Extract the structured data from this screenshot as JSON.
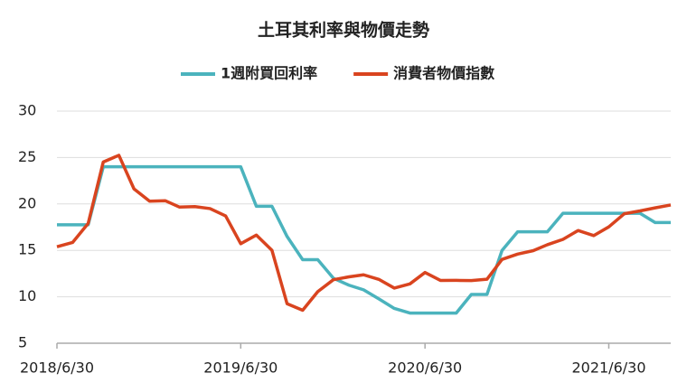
{
  "chart_data": {
    "type": "line",
    "title": "土耳其利率與物價走勢",
    "x": [
      "2018/6/30",
      "2018/7/31",
      "2018/8/31",
      "2018/9/30",
      "2018/10/31",
      "2018/11/30",
      "2018/12/31",
      "2019/1/31",
      "2019/2/28",
      "2019/3/31",
      "2019/4/30",
      "2019/5/31",
      "2019/6/30",
      "2019/7/31",
      "2019/8/31",
      "2019/9/30",
      "2019/10/31",
      "2019/11/30",
      "2019/12/31",
      "2020/1/31",
      "2020/2/29",
      "2020/3/31",
      "2020/4/30",
      "2020/5/31",
      "2020/6/30",
      "2020/7/31",
      "2020/8/31",
      "2020/9/30",
      "2020/10/31",
      "2020/11/30",
      "2020/12/31",
      "2021/1/31",
      "2021/2/28",
      "2021/3/31",
      "2021/4/30",
      "2021/5/31",
      "2021/6/30",
      "2021/7/31",
      "2021/8/31",
      "2021/9/30",
      "2021/10/31"
    ],
    "series": [
      {
        "name": "1週附買回利率",
        "color": "#4bb3bd",
        "values": [
          17.75,
          17.75,
          17.75,
          24,
          24,
          24,
          24,
          24,
          24,
          24,
          24,
          24,
          24,
          19.75,
          19.75,
          16.5,
          14,
          14,
          12,
          11.25,
          10.75,
          9.75,
          8.75,
          8.25,
          8.25,
          8.25,
          8.25,
          10.25,
          10.25,
          15,
          17,
          17,
          17,
          19,
          19,
          19,
          19,
          19,
          19,
          18,
          18
        ]
      },
      {
        "name": "消費者物價指數",
        "color": "#d9441f",
        "values": [
          15.39,
          15.85,
          17.9,
          24.52,
          25.24,
          21.62,
          20.3,
          20.35,
          19.67,
          19.71,
          19.5,
          18.71,
          15.72,
          16.65,
          15.01,
          9.26,
          8.55,
          10.56,
          11.84,
          12.15,
          12.37,
          11.86,
          10.94,
          11.39,
          12.62,
          11.76,
          11.77,
          11.75,
          11.89,
          14.03,
          14.6,
          14.97,
          15.61,
          16.19,
          17.14,
          16.59,
          17.53,
          18.95,
          19.25,
          19.58,
          19.89
        ]
      }
    ],
    "xlim": [
      "2018/6/30",
      "2021/10/31"
    ],
    "xticks": [
      "2018/6/30",
      "2019/6/30",
      "2020/6/30",
      "2021/6/30"
    ],
    "ylim": [
      5,
      30
    ],
    "yticks": [
      5,
      10,
      15,
      20,
      25,
      30
    ],
    "grid": true,
    "legend": "top"
  }
}
